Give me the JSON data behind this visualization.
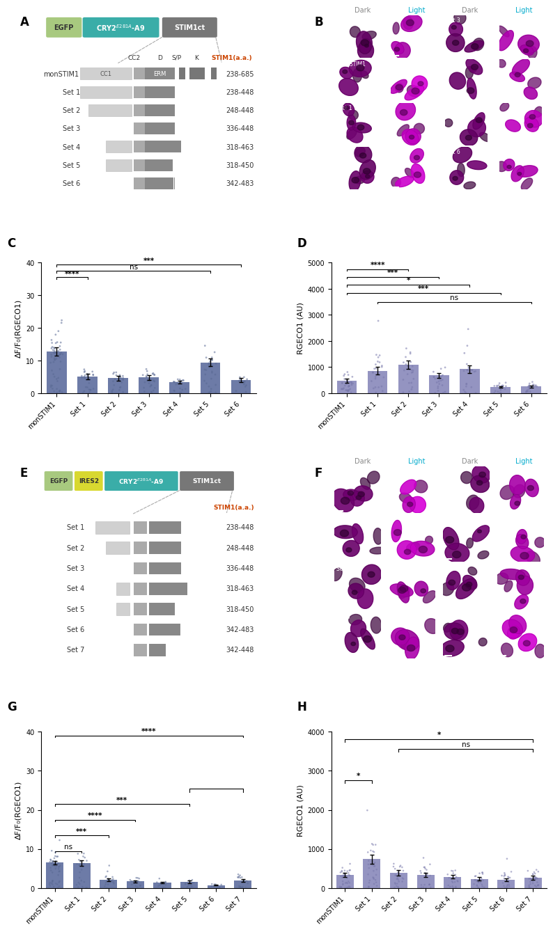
{
  "panel_A": {
    "aa_ranges": [
      "238-685",
      "238-448",
      "248-448",
      "336-448",
      "318-463",
      "318-450",
      "342-483"
    ],
    "sets": [
      "monSTIM1",
      "Set 1",
      "Set 2",
      "Set 3",
      "Set 4",
      "Set 5",
      "Set 6"
    ]
  },
  "panel_C": {
    "categories": [
      "monSTIM1",
      "Set 1",
      "Set 2",
      "Set 3",
      "Set 4",
      "Set 5",
      "Set 6"
    ],
    "means": [
      12.8,
      5.1,
      4.6,
      4.8,
      3.4,
      9.4,
      4.1
    ],
    "sems": [
      1.2,
      0.8,
      0.7,
      0.7,
      0.4,
      1.2,
      0.6
    ],
    "bar_color": "#5d6d9e",
    "dot_color": "#5a6a94",
    "ylabel": "ΔF/F₀(RGECO1)",
    "ylim": [
      0,
      40
    ],
    "yticks": [
      0,
      10,
      20,
      30,
      40
    ]
  },
  "panel_D": {
    "categories": [
      "monSTIM1",
      "Set 1",
      "Set 2",
      "Set 3",
      "Set 4",
      "Set 5",
      "Set 6"
    ],
    "means": [
      480,
      860,
      1090,
      680,
      920,
      240,
      260
    ],
    "sems": [
      75,
      140,
      160,
      95,
      140,
      35,
      40
    ],
    "bar_color": "#8888bb",
    "dot_color": "#7777aa",
    "ylabel": "RGECO1 (AU)",
    "ylim": [
      0,
      5000
    ],
    "yticks": [
      0,
      1000,
      2000,
      3000,
      4000,
      5000
    ]
  },
  "panel_E": {
    "aa_ranges": [
      "238-448",
      "248-448",
      "336-448",
      "318-463",
      "318-450",
      "342-483",
      "342-448"
    ],
    "sets": [
      "Set 1",
      "Set 2",
      "Set 3",
      "Set 4",
      "Set 5",
      "Set 6",
      "Set 7"
    ]
  },
  "panel_G": {
    "categories": [
      "monSTIM1",
      "Set 1",
      "Set 2",
      "Set 3",
      "Set 4",
      "Set 5",
      "Set 6",
      "Set 7"
    ],
    "means": [
      6.5,
      6.4,
      2.2,
      1.7,
      1.4,
      1.6,
      0.8,
      1.9
    ],
    "sems": [
      0.5,
      0.7,
      0.35,
      0.25,
      0.18,
      0.28,
      0.15,
      0.35
    ],
    "bar_color": "#5d6d9e",
    "dot_color": "#5a6a94",
    "ylabel": "ΔF/F₀(RGECO1)",
    "ylim": [
      0,
      40
    ],
    "yticks": [
      0,
      10,
      20,
      30,
      40
    ]
  },
  "panel_H": {
    "categories": [
      "monSTIM1",
      "Set 1",
      "Set 2",
      "Set 3",
      "Set 4",
      "Set 5",
      "Set 6",
      "Set 7"
    ],
    "means": [
      340,
      740,
      390,
      340,
      290,
      240,
      210,
      270
    ],
    "sems": [
      55,
      115,
      65,
      55,
      48,
      38,
      32,
      48
    ],
    "bar_color": "#8888bb",
    "dot_color": "#7777aa",
    "ylabel": "RGECO1 (AU)",
    "ylim": [
      0,
      4000
    ],
    "yticks": [
      0,
      1000,
      2000,
      3000,
      4000
    ]
  },
  "bg_color": "#ffffff",
  "panel_label_size": 12,
  "axis_fontsize": 8,
  "tick_fontsize": 7
}
